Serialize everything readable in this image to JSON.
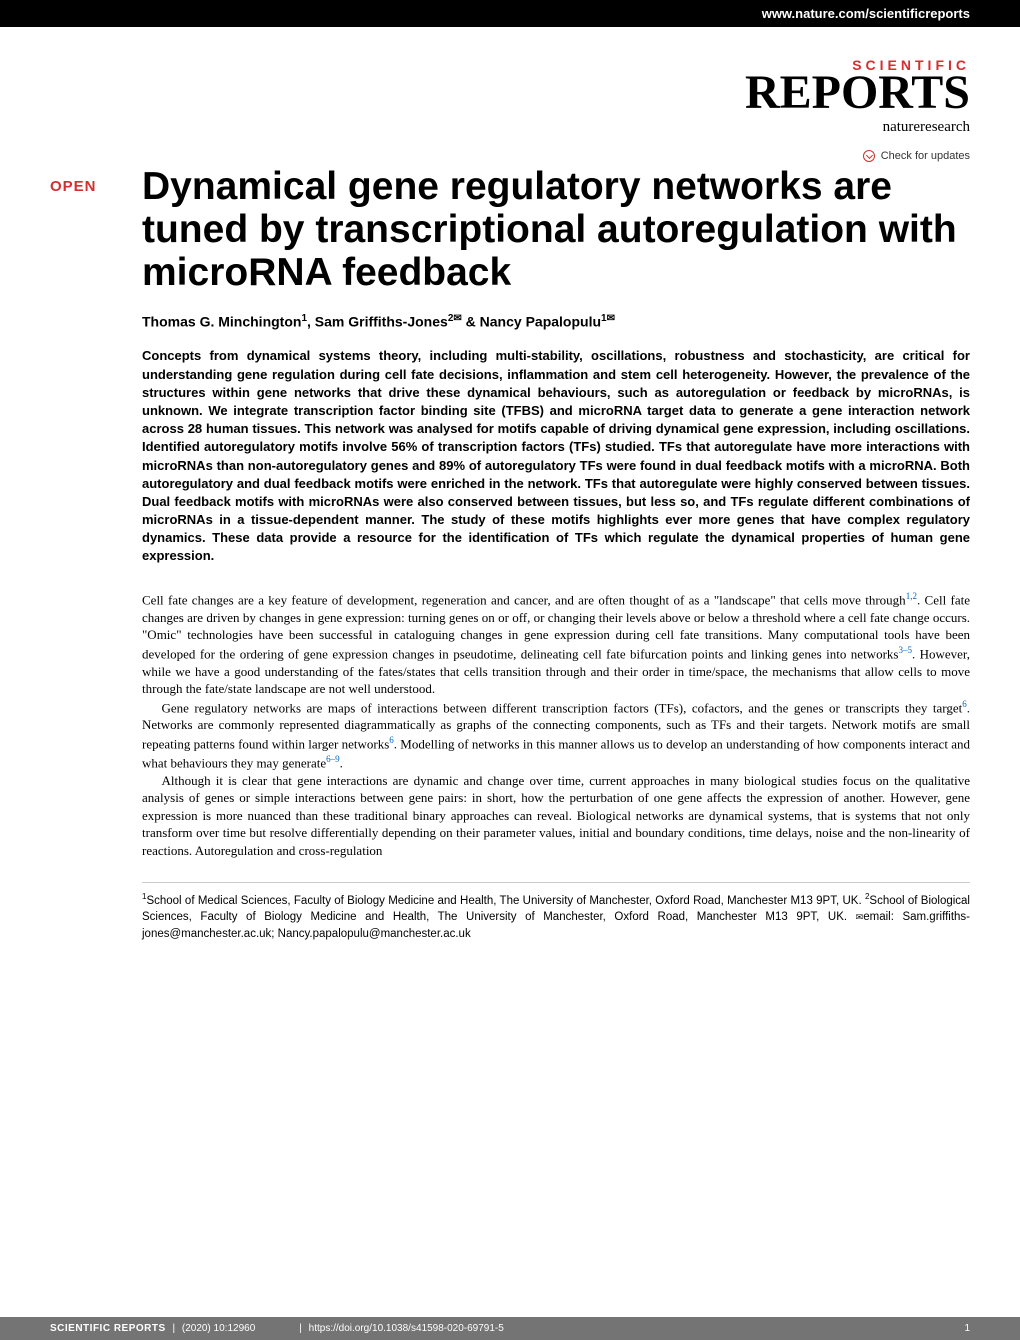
{
  "top_bar": {
    "url": "www.nature.com/scientificreports"
  },
  "journal": {
    "name_line1": "SCIENTIFIC",
    "name_line2": "REPORTS",
    "publisher": "natureresearch"
  },
  "check_updates": {
    "text": "Check for updates"
  },
  "open_badge": "OPEN",
  "title": "Dynamical gene regulatory networks are tuned by transcriptional autoregulation with microRNA feedback",
  "authors": {
    "text": "Thomas G. Minchington",
    "sup1": "1",
    "text2": ", Sam Griffiths-Jones",
    "sup2": "2",
    "env1": "✉",
    "text3": " & Nancy Papalopulu",
    "sup3": "1",
    "env2": "✉"
  },
  "abstract": "Concepts from dynamical systems theory, including multi-stability, oscillations, robustness and stochasticity, are critical for understanding gene regulation during cell fate decisions, inflammation and stem cell heterogeneity. However, the prevalence of the structures within gene networks that drive these dynamical behaviours, such as autoregulation or feedback by microRNAs, is unknown. We integrate transcription factor binding site (TFBS) and microRNA target data to generate a gene interaction network across 28 human tissues. This network was analysed for motifs capable of driving dynamical gene expression, including oscillations. Identified autoregulatory motifs involve 56% of transcription factors (TFs) studied. TFs that autoregulate have more interactions with microRNAs than non-autoregulatory genes and 89% of autoregulatory TFs were found in dual feedback motifs with a microRNA. Both autoregulatory and dual feedback motifs were enriched in the network. TFs that autoregulate were highly conserved between tissues. Dual feedback motifs with microRNAs were also conserved between tissues, but less so, and TFs regulate different combinations of microRNAs in a tissue-dependent manner. The study of these motifs highlights ever more genes that have complex regulatory dynamics. These data provide a resource for the identification of TFs which regulate the dynamical properties of human gene expression.",
  "body": {
    "p1": "Cell fate changes are a key feature of development, regeneration and cancer, and are often thought of as a \"landscape\" that cells move through",
    "ref1": "1,2",
    "p1b": ". Cell fate changes are driven by changes in gene expression: turning genes on or off, or changing their levels above or below a threshold where a cell fate change occurs. \"Omic\" technologies have been successful in cataloguing changes in gene expression during cell fate transitions. Many computational tools have been developed for the ordering of gene expression changes in pseudotime, delineating cell fate bifurcation points and linking genes into networks",
    "ref2": "3–5",
    "p1c": ". However, while we have a good understanding of the fates/states that cells transition through and their order in time/space, the mechanisms that allow cells to move through the fate/state landscape are not well understood.",
    "p2": "Gene regulatory networks are maps of interactions between different transcription factors (TFs), cofactors, and the genes or transcripts they target",
    "ref3": "6",
    "p2b": ". Networks are commonly represented diagrammatically as graphs of the connecting components, such as TFs and their targets. Network motifs are small repeating patterns found within larger networks",
    "ref4": "6",
    "p2c": ". Modelling of networks in this manner allows us to develop an understanding of how components interact and what behaviours they may generate",
    "ref5": "6–9",
    "p2d": ".",
    "p3": "Although it is clear that gene interactions are dynamic and change over time, current approaches in many biological studies focus on the qualitative analysis of genes or simple interactions between gene pairs: in short, how the perturbation of one gene affects the expression of another. However, gene expression is more nuanced than these traditional binary approaches can reveal. Biological networks are dynamical systems, that is systems that not only transform over time but resolve differentially depending on their parameter values, initial and boundary conditions, time delays, noise and the non-linearity of reactions. Autoregulation and cross-regulation"
  },
  "affiliations": {
    "text": "School of Medical Sciences, Faculty of Biology Medicine and Health, The University of Manchester, Oxford Road, Manchester M13 9PT, UK. ",
    "sup1": "1",
    "sup2": "2",
    "text2": "School of Biological Sciences, Faculty of Biology Medicine and Health, The University of Manchester, Oxford Road, Manchester M13 9PT, UK. ",
    "email_label": "email: ",
    "email1": "Sam.griffiths-jones@manchester.ac.uk; Nancy.papalopulu@manchester.ac.uk"
  },
  "footer": {
    "journal": "Scientific Reports",
    "citation": "(2020) 10:12960",
    "doi": "https://doi.org/10.1038/s41598-020-69791-5",
    "page": "1"
  }
}
